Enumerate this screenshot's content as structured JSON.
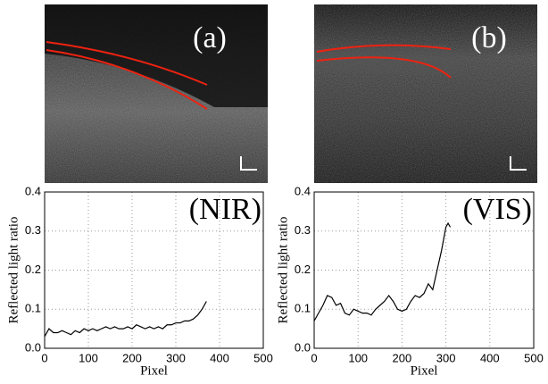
{
  "panels": [
    {
      "label": "(a)"
    },
    {
      "label": "(b)"
    }
  ],
  "chart_data": [
    {
      "type": "line",
      "annotation": "(NIR)",
      "xlabel": "Pixel",
      "ylabel": "Reflected light ratio",
      "color": "#000000",
      "grid": true,
      "x": [
        0,
        10,
        20,
        30,
        40,
        50,
        60,
        70,
        80,
        90,
        100,
        110,
        120,
        130,
        140,
        150,
        160,
        170,
        180,
        190,
        200,
        210,
        220,
        230,
        240,
        250,
        260,
        270,
        280,
        290,
        300,
        310,
        320,
        330,
        340,
        350,
        360,
        370
      ],
      "values": [
        0.03,
        0.05,
        0.04,
        0.04,
        0.045,
        0.04,
        0.035,
        0.045,
        0.04,
        0.05,
        0.045,
        0.05,
        0.045,
        0.05,
        0.055,
        0.05,
        0.055,
        0.05,
        0.05,
        0.055,
        0.05,
        0.06,
        0.055,
        0.05,
        0.055,
        0.05,
        0.055,
        0.05,
        0.06,
        0.06,
        0.065,
        0.065,
        0.07,
        0.07,
        0.075,
        0.085,
        0.1,
        0.12
      ],
      "xlim": [
        0,
        500
      ],
      "xticks": [
        0,
        100,
        200,
        300,
        400,
        500
      ],
      "ylim": [
        0,
        0.4
      ],
      "yticks": [
        {
          "value": 0,
          "label": "0.0"
        },
        0.1,
        0.2,
        0.3,
        0.4
      ]
    },
    {
      "type": "line",
      "annotation": "(VIS)",
      "xlabel": "Pixel",
      "ylabel": "Reflected light ratio",
      "color": "#000000",
      "grid": true,
      "x": [
        0,
        10,
        20,
        30,
        40,
        50,
        60,
        70,
        80,
        90,
        100,
        110,
        120,
        130,
        140,
        150,
        160,
        170,
        180,
        190,
        200,
        210,
        220,
        230,
        240,
        250,
        260,
        270,
        280,
        290,
        300,
        305,
        310
      ],
      "values": [
        0.07,
        0.09,
        0.11,
        0.135,
        0.13,
        0.11,
        0.115,
        0.09,
        0.085,
        0.1,
        0.095,
        0.09,
        0.09,
        0.085,
        0.1,
        0.11,
        0.12,
        0.135,
        0.12,
        0.1,
        0.095,
        0.1,
        0.12,
        0.135,
        0.13,
        0.14,
        0.165,
        0.15,
        0.2,
        0.25,
        0.31,
        0.32,
        0.31
      ],
      "xlim": [
        0,
        500
      ],
      "xticks": [
        0,
        100,
        200,
        300,
        400,
        500
      ],
      "ylim": [
        0,
        0.4
      ],
      "yticks": [
        {
          "value": 0,
          "label": "0.0"
        },
        0.1,
        0.2,
        0.3,
        0.4
      ]
    }
  ]
}
